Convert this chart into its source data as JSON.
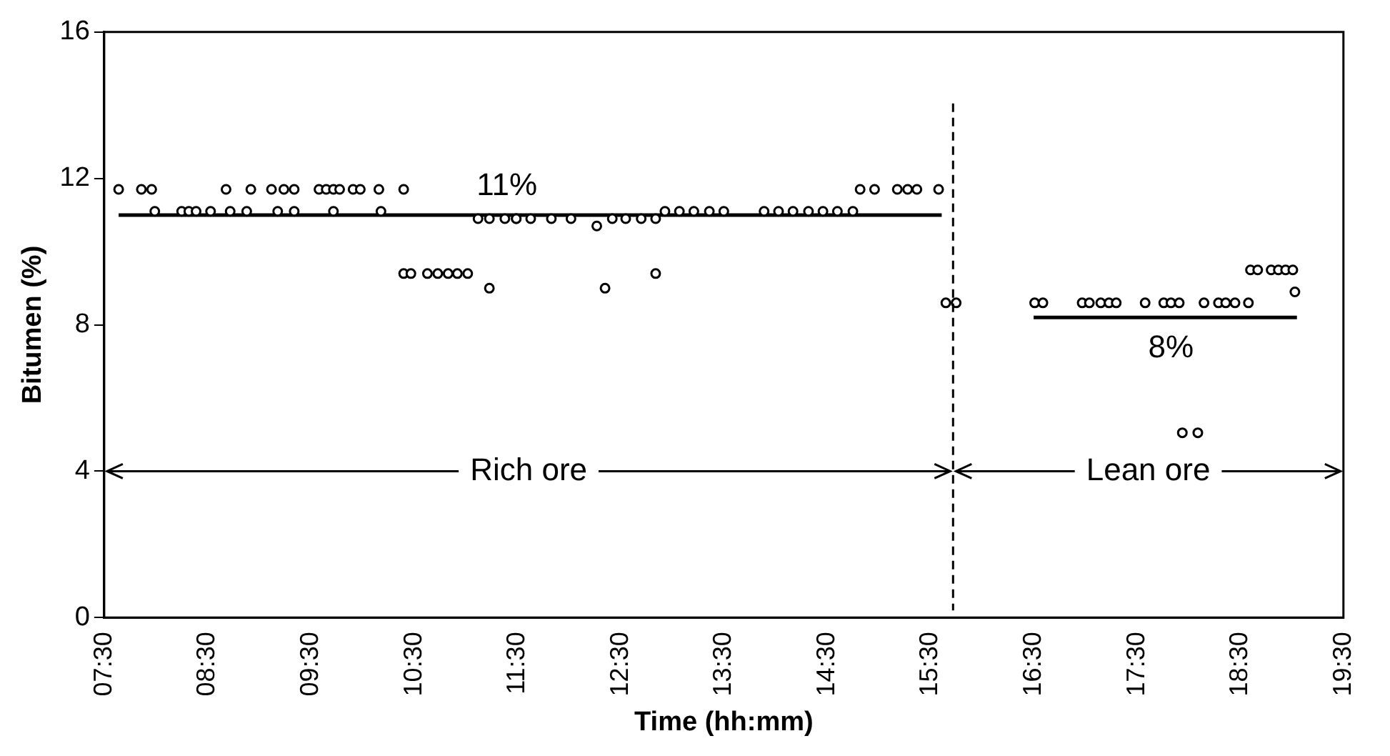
{
  "chart_data": {
    "type": "scatter",
    "xlabel": "Time (hh:mm)",
    "ylabel": "Bitumen (%)",
    "xlim": [
      7.5,
      19.5
    ],
    "xticks": [
      {
        "value": 7.5,
        "label": "07:30"
      },
      {
        "value": 8.5,
        "label": "08:30"
      },
      {
        "value": 9.5,
        "label": "09:30"
      },
      {
        "value": 10.5,
        "label": "10:30"
      },
      {
        "value": 11.5,
        "label": "11:30"
      },
      {
        "value": 12.5,
        "label": "12:30"
      },
      {
        "value": 13.5,
        "label": "13:30"
      },
      {
        "value": 14.5,
        "label": "14:30"
      },
      {
        "value": 15.5,
        "label": "15:30"
      },
      {
        "value": 16.5,
        "label": "16:30"
      },
      {
        "value": 17.5,
        "label": "17:30"
      },
      {
        "value": 18.5,
        "label": "18:30"
      },
      {
        "value": 19.5,
        "label": "19:30"
      }
    ],
    "ylim": [
      0,
      16
    ],
    "yticks": [
      0,
      4,
      8,
      12,
      16
    ],
    "grid": false,
    "legend": false,
    "marker": "circle",
    "series": [
      {
        "type": "scatter",
        "color": "#000000",
        "x": [
          7.64,
          7.86,
          7.96,
          8.68,
          8.92,
          9.12,
          9.24,
          9.34,
          9.58,
          9.65,
          9.72,
          9.78,
          9.91,
          9.98,
          10.16,
          10.4,
          7.99,
          8.25,
          8.32,
          8.39,
          8.53,
          8.72,
          8.88,
          9.18,
          9.34,
          9.72,
          10.18,
          11.12,
          11.23,
          11.38,
          11.49,
          10.4,
          10.47,
          10.63,
          10.73,
          10.83,
          10.92,
          11.02,
          11.23,
          11.49,
          11.63,
          11.83,
          12.02,
          12.27,
          12.42,
          12.55,
          12.7,
          12.84,
          12.93,
          13.07,
          13.21,
          13.36,
          13.5,
          13.89,
          14.03,
          14.17,
          14.32,
          14.46,
          14.6,
          14.75,
          14.82,
          14.96,
          15.18,
          15.28,
          15.37,
          15.58,
          12.35,
          12.84,
          15.65,
          15.75,
          16.51,
          16.59,
          16.97,
          17.04,
          17.15,
          17.23,
          17.3,
          17.58,
          17.76,
          17.83,
          17.91,
          18.15,
          18.29,
          18.36,
          18.45,
          18.58,
          18.6,
          18.67,
          18.8,
          18.87,
          18.94,
          19.01,
          19.03,
          17.94,
          18.09
        ],
        "values": [
          11.7,
          11.7,
          11.7,
          11.7,
          11.7,
          11.7,
          11.7,
          11.7,
          11.7,
          11.7,
          11.7,
          11.7,
          11.7,
          11.7,
          11.7,
          11.7,
          11.1,
          11.1,
          11.1,
          11.1,
          11.1,
          11.1,
          11.1,
          11.1,
          11.1,
          11.1,
          11.1,
          10.9,
          10.9,
          10.9,
          10.9,
          9.4,
          9.4,
          9.4,
          9.4,
          9.4,
          9.4,
          9.4,
          9,
          10.9,
          10.9,
          10.9,
          10.9,
          10.7,
          10.9,
          10.9,
          10.9,
          10.9,
          11.1,
          11.1,
          11.1,
          11.1,
          11.1,
          11.1,
          11.1,
          11.1,
          11.1,
          11.1,
          11.1,
          11.1,
          11.7,
          11.7,
          11.7,
          11.7,
          11.7,
          11.7,
          9,
          9.4,
          8.6,
          8.6,
          8.6,
          8.6,
          8.6,
          8.6,
          8.6,
          8.6,
          8.6,
          8.6,
          8.6,
          8.6,
          8.6,
          8.6,
          8.6,
          8.6,
          8.6,
          8.6,
          9.5,
          9.5,
          9.5,
          9.5,
          9.5,
          9.5,
          8.9,
          5.05,
          5.05
        ]
      },
      {
        "type": "line",
        "color": "#000000",
        "marker": "none",
        "line_style": "solid",
        "x": [
          7.64,
          15.61
        ],
        "values": [
          11,
          11
        ]
      },
      {
        "type": "line",
        "color": "#000000",
        "marker": "none",
        "line_style": "solid",
        "x": [
          16.5,
          19.05
        ],
        "values": [
          8.2,
          8.2
        ]
      }
    ],
    "ref_lines": [
      {
        "axis": "x",
        "value": 15.72,
        "color": "#000000",
        "line_style": "dashed"
      }
    ],
    "annotations": [
      {
        "text": "11%",
        "x": 11.4,
        "y": 11
      },
      {
        "text": "8%",
        "x": 17.83,
        "y": 8.2
      },
      {
        "text": "Rich ore",
        "x": 15.72,
        "y": 4
      },
      "Lean ore"
    ]
  }
}
